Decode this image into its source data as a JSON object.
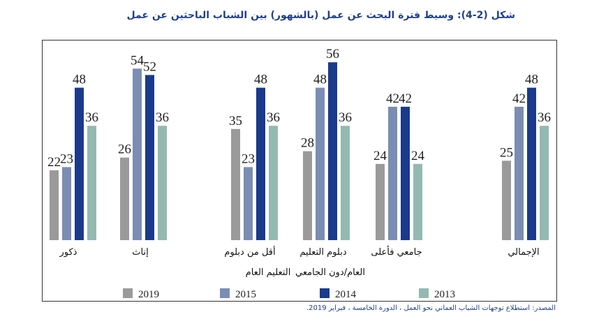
{
  "title": "شكل (2-4): وسيط فترة البحث عن عمل (بالشهور) بين الشباب الباحثين عن عمل",
  "source": "المصدر: استطلاع توجهات الشباب العماني نحو العمل ، الدورة الخامسة ، فبراير 2019.",
  "category_notes": [
    "التعليم العام",
    "العام/دون الجامعي"
  ],
  "colors": {
    "2019": "#9a9a9a",
    "2015": "#7b8db3",
    "2014": "#1b3a8c",
    "2013": "#94b9b0"
  },
  "chart_data": {
    "type": "bar",
    "title": "وسيط فترة البحث عن عمل (بالشهور) بين الشباب الباحثين عن عمل",
    "categories": [
      "ذكور",
      "إناث",
      "أقل من دبلوم",
      "دبلوم التعليم",
      "جامعي فأعلى",
      "الإجمالي"
    ],
    "series": [
      {
        "name": "2019",
        "values": [
          22,
          26,
          35,
          28,
          24,
          25
        ]
      },
      {
        "name": "2015",
        "values": [
          23,
          54,
          23,
          48,
          42,
          42
        ]
      },
      {
        "name": "2014",
        "values": [
          48,
          52,
          48,
          56,
          42,
          48
        ]
      },
      {
        "name": "2013",
        "values": [
          36,
          36,
          36,
          36,
          24,
          36
        ]
      }
    ],
    "ylim": [
      0,
      60
    ],
    "grid": false,
    "legend": "bottom",
    "xlabel": "",
    "ylabel": ""
  }
}
